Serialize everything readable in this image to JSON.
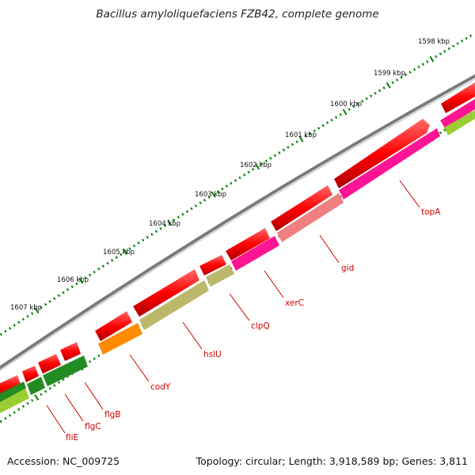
{
  "title": "Bacillus amyloliquefaciens FZB42, complete genome",
  "accession": "Accession: NC_009725",
  "topology": "Topology: circular; Length: 3,918,589 bp; Genes: 3,811",
  "scale_labels": [
    "1598 kbp",
    "1599 kbp",
    "1600 kbp",
    "1601 kbp",
    "1602 kbp",
    "1603 kbp",
    "1604 kbp",
    "1605 kbp",
    "1606 kbp",
    "1607 kbp"
  ],
  "genes": [
    {
      "name": "topA",
      "color": "#ff1493"
    },
    {
      "name": "gid",
      "color": "#f08080"
    },
    {
      "name": "xerC",
      "color": "#ff1493"
    },
    {
      "name": "clpQ",
      "color": "#bdb76b"
    },
    {
      "name": "hslU",
      "color": "#bdb76b"
    },
    {
      "name": "codY",
      "color": "#ff8c00"
    },
    {
      "name": "flgB",
      "color": "#228b22"
    },
    {
      "name": "flgC",
      "color": "#228b22"
    },
    {
      "name": "fliE",
      "color": "#9acd32"
    }
  ],
  "colors": {
    "backbone": "#808080",
    "forward_strand": "#ff0000",
    "scale_ticks": "#008000",
    "label_lines": "#d00000"
  }
}
